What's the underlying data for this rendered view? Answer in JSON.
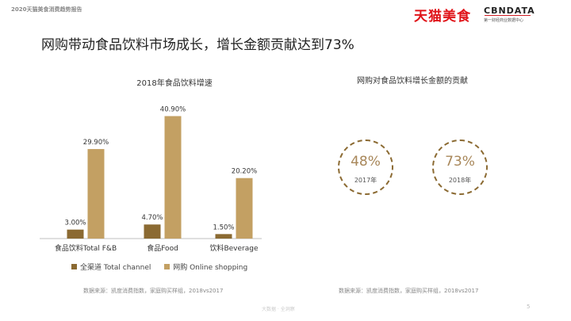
{
  "header": {
    "report_tag": "2020天猫美食消费趋势报告",
    "title": "网购带动食品饮料市场成长，增长金额贡献达到73%",
    "logo_tmall": "天猫美食",
    "logo_cbn": "CBNDATA",
    "logo_cbn_sub": "第一财经商业数据中心"
  },
  "chart_data": {
    "type": "bar",
    "title": "2018年食品饮料增速",
    "categories": [
      "食品饮料Total F&B",
      "食品Food",
      "饮料Beverage"
    ],
    "series": [
      {
        "name": "全渠道 Total channel",
        "values": [
          3.0,
          4.7,
          1.5
        ],
        "labels": [
          "3.00%",
          "4.70%",
          "1.50%"
        ],
        "color": "#8b6a32"
      },
      {
        "name": "网购 Online shopping",
        "values": [
          29.9,
          40.9,
          20.2
        ],
        "labels": [
          "29.90%",
          "40.90%",
          "20.20%"
        ],
        "color": "#c3a063"
      }
    ],
    "ylim": [
      0,
      45
    ],
    "grid": false,
    "legend": "bottom"
  },
  "right": {
    "title": "网购对食品饮料增长金额的贡献",
    "items": [
      {
        "pct": "48%",
        "year": "2017年"
      },
      {
        "pct": "73%",
        "year": "2018年"
      }
    ]
  },
  "source1": "数据来源：凯度消费指数，家庭购买样组，2018vs2017",
  "source2": "数据来源：凯度消费指数，家庭购买样组，2018vs2017",
  "footer": "大数据 · 全洞察",
  "page_number": "5"
}
